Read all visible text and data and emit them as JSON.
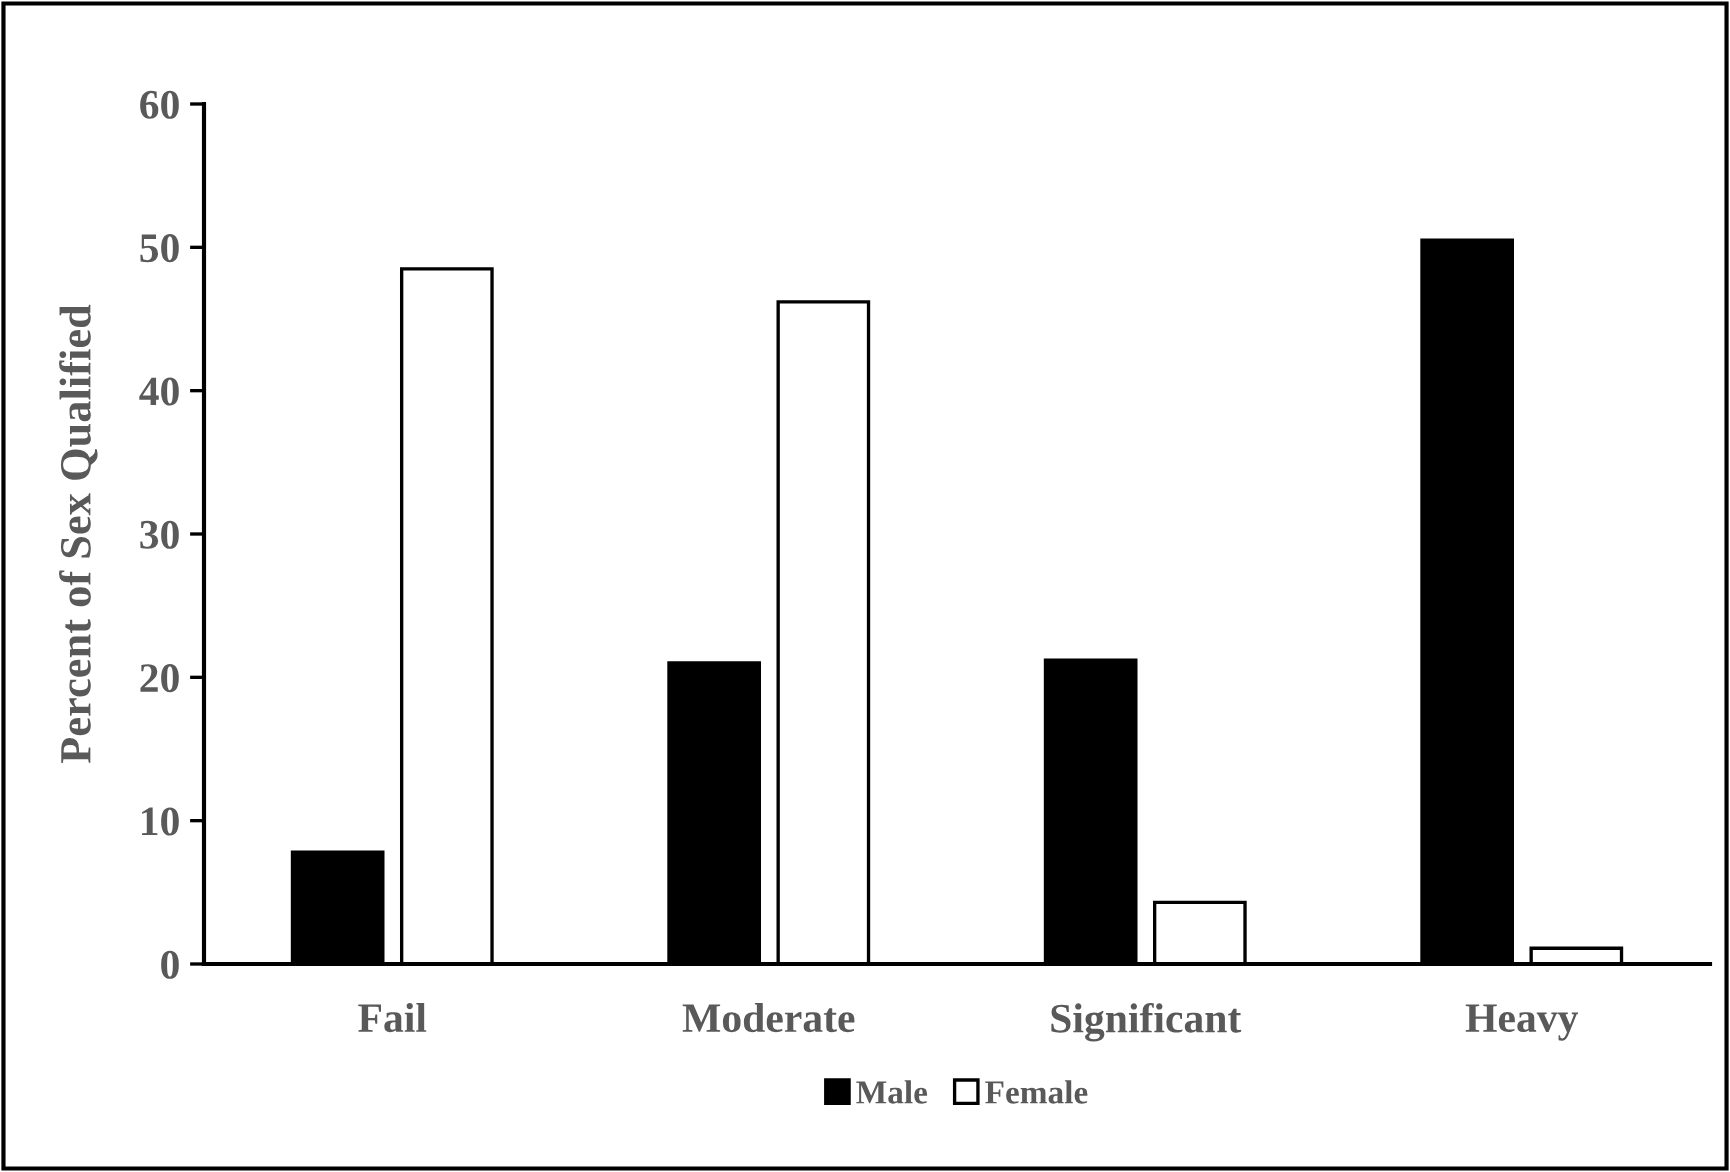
{
  "chart_data": {
    "type": "bar",
    "ylabel": "Percent of Sex Qualified",
    "categories": [
      "Fail",
      "Moderate",
      "Significant",
      "Heavy"
    ],
    "series": [
      {
        "name": "Male",
        "color": "#000000",
        "values": [
          7.8,
          21.0,
          21.2,
          50.5
        ]
      },
      {
        "name": "Female",
        "color": "#ffffff",
        "values": [
          48.5,
          46.2,
          4.3,
          1.1
        ]
      }
    ],
    "ylim": [
      0,
      60
    ],
    "yticks": [
      0,
      10,
      20,
      30,
      40,
      50,
      60
    ],
    "grid": false,
    "legend": "bottom"
  }
}
